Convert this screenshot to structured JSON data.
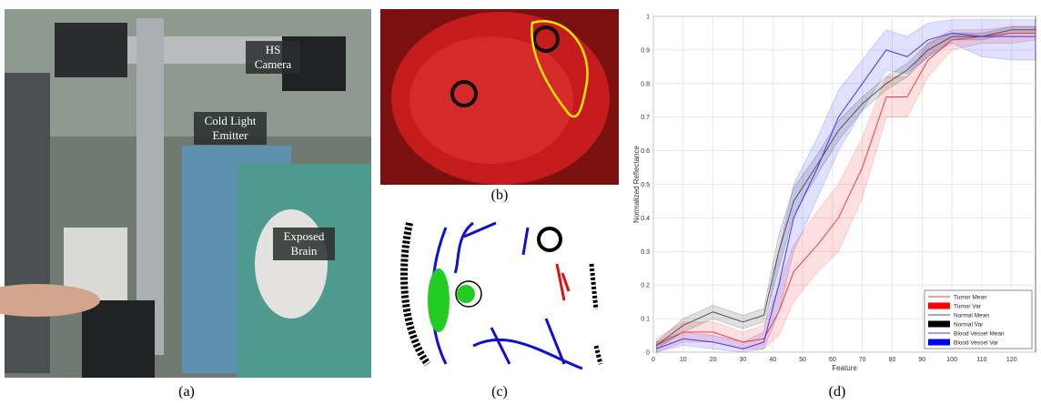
{
  "figure": {
    "panels": [
      {
        "caption": "(a)",
        "labels": [
          "HS Camera",
          "Cold Light Emitter",
          "Exposed Brain"
        ]
      },
      {
        "caption": "(b)"
      },
      {
        "caption": "(c)"
      },
      {
        "caption": "(d)"
      }
    ]
  },
  "chart_data": {
    "type": "line",
    "x_label": "Feature",
    "y_label": "Normalized Reflectance",
    "x": [
      1,
      10,
      20,
      30,
      37,
      42,
      47,
      55,
      62,
      70,
      78,
      85,
      92,
      100,
      110,
      120,
      128
    ],
    "xlim": [
      0,
      128
    ],
    "ylim": [
      0,
      1
    ],
    "xticks": [
      0,
      10,
      20,
      30,
      40,
      50,
      60,
      70,
      80,
      90,
      100,
      110,
      120
    ],
    "yticks": [
      0,
      0.1,
      0.2,
      0.3,
      0.4,
      0.5,
      0.6,
      0.7,
      0.8,
      0.9,
      1
    ],
    "grid": true,
    "legend": "lower-right",
    "series": [
      {
        "name": "Tumor Mean",
        "color": "#f03c3c",
        "values": [
          0.02,
          0.06,
          0.06,
          0.03,
          0.04,
          0.12,
          0.24,
          0.32,
          0.4,
          0.55,
          0.76,
          0.76,
          0.87,
          0.93,
          0.94,
          0.95,
          0.95
        ]
      },
      {
        "name": "Tumor Var",
        "color": "#ff0000",
        "lower": [
          0.0,
          0.03,
          0.03,
          0.01,
          0.01,
          0.05,
          0.15,
          0.24,
          0.3,
          0.46,
          0.7,
          0.7,
          0.82,
          0.9,
          0.92,
          0.92,
          0.93
        ],
        "upper": [
          0.04,
          0.09,
          0.09,
          0.06,
          0.08,
          0.2,
          0.32,
          0.42,
          0.5,
          0.64,
          0.82,
          0.82,
          0.92,
          0.96,
          0.96,
          0.97,
          0.97
        ]
      },
      {
        "name": "Normal Mean",
        "color": "#555555",
        "values": [
          0.02,
          0.08,
          0.12,
          0.09,
          0.11,
          0.3,
          0.45,
          0.56,
          0.66,
          0.74,
          0.8,
          0.84,
          0.9,
          0.94,
          0.94,
          0.96,
          0.96
        ]
      },
      {
        "name": "Normal Var",
        "color": "#000000",
        "lower": [
          0.01,
          0.06,
          0.1,
          0.07,
          0.09,
          0.25,
          0.41,
          0.53,
          0.63,
          0.72,
          0.78,
          0.82,
          0.88,
          0.93,
          0.93,
          0.95,
          0.95
        ],
        "upper": [
          0.03,
          0.1,
          0.14,
          0.11,
          0.13,
          0.35,
          0.49,
          0.59,
          0.69,
          0.76,
          0.82,
          0.86,
          0.92,
          0.95,
          0.95,
          0.97,
          0.97
        ]
      },
      {
        "name": "Blood Vessel Mean",
        "color": "#3c3cf0",
        "values": [
          0.01,
          0.04,
          0.03,
          0.01,
          0.03,
          0.2,
          0.4,
          0.55,
          0.7,
          0.8,
          0.9,
          0.88,
          0.93,
          0.95,
          0.94,
          0.94,
          0.94
        ]
      },
      {
        "name": "Blood Vessel Var",
        "color": "#0000ff",
        "lower": [
          0.0,
          0.02,
          0.01,
          0.0,
          0.01,
          0.12,
          0.3,
          0.46,
          0.6,
          0.72,
          0.84,
          0.83,
          0.88,
          0.92,
          0.88,
          0.87,
          0.87
        ],
        "upper": [
          0.03,
          0.06,
          0.05,
          0.03,
          0.06,
          0.3,
          0.5,
          0.64,
          0.78,
          0.87,
          0.96,
          0.94,
          0.98,
          0.99,
          0.99,
          0.99,
          0.99
        ]
      }
    ]
  }
}
